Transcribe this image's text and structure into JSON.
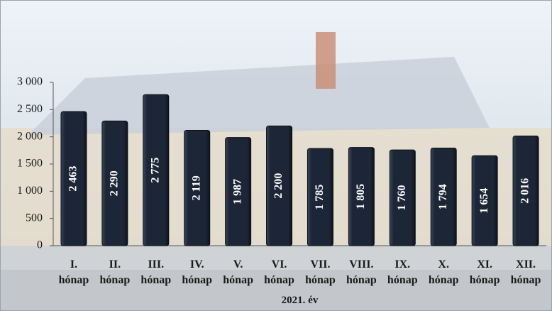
{
  "chart_data": {
    "type": "bar",
    "categories": [
      "I. hónap",
      "II. hónap",
      "III. hónap",
      "IV. hónap",
      "V. hónap",
      "VI. hónap",
      "VII. hónap",
      "VIII. hónap",
      "IX. hónap",
      "X. hónap",
      "XI. hónap",
      "XII. hónap"
    ],
    "values": [
      2463,
      2290,
      2775,
      2119,
      1987,
      2200,
      1785,
      1805,
      1760,
      1794,
      1654,
      2016
    ],
    "value_labels": [
      "2 463",
      "2 290",
      "2 775",
      "2 119",
      "1 987",
      "2 200",
      "1 785",
      "1 805",
      "1 760",
      "1 794",
      "1 654",
      "2 016"
    ],
    "color": "#1c2636",
    "ylim": [
      0,
      3000
    ],
    "yticks": [
      {
        "value": 0,
        "label": "0"
      },
      {
        "value": 500,
        "label": "500"
      },
      {
        "value": 1000,
        "label": "1 000"
      },
      {
        "value": 1500,
        "label": "1 500"
      },
      {
        "value": 2000,
        "label": "2 000"
      },
      {
        "value": 2500,
        "label": "2 500"
      },
      {
        "value": 3000,
        "label": "3 000"
      }
    ],
    "x_label": "2021. év"
  }
}
